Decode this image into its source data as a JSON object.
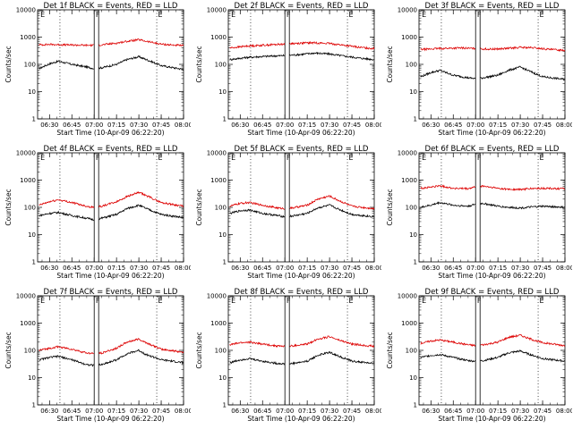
{
  "colors": {
    "events": "#000000",
    "lld": "#dd0000",
    "axes": "#000000"
  },
  "chart_data": [
    {
      "type": "line",
      "title": "Det 1f BLACK = Events, RED = LLD",
      "xlabel": "Start Time (10-Apr-09 06:22:20)",
      "ylabel": "Counts/sec",
      "x_tick_labels": [
        "06:30",
        "06:45",
        "07:00",
        "07:15",
        "07:30",
        "07:45",
        "08:00"
      ],
      "y_tick_labels": [
        "1",
        "10",
        "100",
        "1000",
        "10000"
      ],
      "y_scale": "log",
      "ylim": [
        1,
        10000
      ],
      "xlim": [
        "06:22",
        "08:00"
      ],
      "markers": [
        {
          "label": "E",
          "time": "06:23"
        },
        {
          "label": "F",
          "time": "07:00"
        },
        {
          "label": "E",
          "time": "07:42"
        }
      ],
      "dotted_lines": [
        "06:37",
        "07:42"
      ],
      "gap": [
        "07:00",
        "07:03"
      ],
      "series": [
        {
          "name": "Events",
          "color": "#000000",
          "x": [
            "06:23",
            "06:30",
            "06:36",
            "06:45",
            "06:55",
            "07:00",
            "07:05",
            "07:15",
            "07:22",
            "07:30",
            "07:35",
            "07:45",
            "08:00"
          ],
          "y": [
            70,
            105,
            130,
            100,
            80,
            70,
            75,
            100,
            150,
            190,
            150,
            90,
            65
          ]
        },
        {
          "name": "LLD",
          "color": "#dd0000",
          "x": [
            "06:23",
            "06:30",
            "06:40",
            "06:55",
            "07:00",
            "07:05",
            "07:15",
            "07:22",
            "07:30",
            "07:35",
            "07:45",
            "08:00"
          ],
          "y": [
            520,
            540,
            520,
            500,
            500,
            520,
            600,
            700,
            800,
            700,
            550,
            480
          ]
        }
      ]
    },
    {
      "type": "line",
      "title": "Det 2f BLACK = Events, RED = LLD",
      "xlabel": "Start Time (10-Apr-09 06:22:20)",
      "ylabel": "Counts/sec",
      "x_tick_labels": [
        "06:30",
        "06:45",
        "07:00",
        "07:15",
        "07:30",
        "07:45",
        "08:00"
      ],
      "y_tick_labels": [
        "1",
        "10",
        "100",
        "1000",
        "10000"
      ],
      "y_scale": "log",
      "ylim": [
        1,
        10000
      ],
      "xlim": [
        "06:22",
        "08:00"
      ],
      "markers": [
        {
          "label": "E",
          "time": "06:23"
        },
        {
          "label": "F",
          "time": "07:00"
        },
        {
          "label": "E",
          "time": "07:42"
        }
      ],
      "dotted_lines": [
        "06:37",
        "07:42"
      ],
      "gap": [
        "07:00",
        "07:03"
      ],
      "series": [
        {
          "name": "Events",
          "color": "#000000",
          "x": [
            "06:23",
            "06:35",
            "06:50",
            "07:00",
            "07:10",
            "07:20",
            "07:30",
            "07:40",
            "07:50",
            "08:00"
          ],
          "y": [
            150,
            180,
            200,
            210,
            230,
            260,
            240,
            200,
            170,
            150
          ]
        },
        {
          "name": "LLD",
          "color": "#dd0000",
          "x": [
            "06:23",
            "06:35",
            "06:50",
            "07:00",
            "07:10",
            "07:20",
            "07:30",
            "07:40",
            "07:50",
            "08:00"
          ],
          "y": [
            400,
            470,
            520,
            560,
            600,
            620,
            580,
            500,
            420,
            380
          ]
        }
      ]
    },
    {
      "type": "line",
      "title": "Det 3f BLACK = Events, RED = LLD",
      "xlabel": "Start Time (10-Apr-09 06:22:20)",
      "ylabel": "Counts/sec",
      "x_tick_labels": [
        "06:30",
        "06:45",
        "07:00",
        "07:15",
        "07:30",
        "07:45",
        "08:00"
      ],
      "y_tick_labels": [
        "1",
        "10",
        "100",
        "1000",
        "10000"
      ],
      "y_scale": "log",
      "ylim": [
        1,
        10000
      ],
      "xlim": [
        "06:22",
        "08:00"
      ],
      "markers": [
        {
          "label": "E",
          "time": "06:23"
        },
        {
          "label": "F",
          "time": "07:00"
        },
        {
          "label": "E",
          "time": "07:42"
        }
      ],
      "dotted_lines": [
        "06:37",
        "07:42"
      ],
      "gap": [
        "07:00",
        "07:03"
      ],
      "series": [
        {
          "name": "Events",
          "color": "#000000",
          "x": [
            "06:23",
            "06:30",
            "06:36",
            "06:45",
            "06:55",
            "07:00",
            "07:05",
            "07:15",
            "07:22",
            "07:30",
            "07:35",
            "07:45",
            "08:00"
          ],
          "y": [
            35,
            50,
            60,
            40,
            32,
            30,
            32,
            40,
            60,
            80,
            60,
            35,
            28
          ]
        },
        {
          "name": "LLD",
          "color": "#dd0000",
          "x": [
            "06:23",
            "06:35",
            "06:50",
            "07:00",
            "07:10",
            "07:20",
            "07:30",
            "07:40",
            "07:50",
            "08:00"
          ],
          "y": [
            350,
            380,
            400,
            380,
            360,
            380,
            420,
            400,
            350,
            330
          ]
        }
      ]
    },
    {
      "type": "line",
      "title": "Det 4f BLACK = Events, RED = LLD",
      "xlabel": "Start Time (10-Apr-09 06:22:20)",
      "ylabel": "Counts/sec",
      "x_tick_labels": [
        "06:30",
        "06:45",
        "07:00",
        "07:15",
        "07:30",
        "07:45",
        "08:00"
      ],
      "y_tick_labels": [
        "1",
        "10",
        "100",
        "1000",
        "10000"
      ],
      "y_scale": "log",
      "ylim": [
        1,
        10000
      ],
      "xlim": [
        "06:22",
        "08:00"
      ],
      "markers": [
        {
          "label": "E",
          "time": "06:23"
        },
        {
          "label": "F",
          "time": "07:00"
        },
        {
          "label": "E",
          "time": "07:42"
        }
      ],
      "dotted_lines": [
        "06:37",
        "07:42"
      ],
      "gap": [
        "07:00",
        "07:03"
      ],
      "series": [
        {
          "name": "Events",
          "color": "#000000",
          "x": [
            "06:23",
            "06:30",
            "06:36",
            "06:45",
            "06:55",
            "07:00",
            "07:05",
            "07:15",
            "07:22",
            "07:30",
            "07:35",
            "07:45",
            "08:00"
          ],
          "y": [
            50,
            60,
            65,
            50,
            40,
            35,
            40,
            55,
            90,
            120,
            90,
            55,
            42
          ]
        },
        {
          "name": "LLD",
          "color": "#dd0000",
          "x": [
            "06:23",
            "06:30",
            "06:36",
            "06:45",
            "06:55",
            "07:00",
            "07:05",
            "07:15",
            "07:22",
            "07:30",
            "07:35",
            "07:45",
            "08:00"
          ],
          "y": [
            120,
            160,
            190,
            150,
            110,
            100,
            110,
            160,
            250,
            350,
            270,
            150,
            110
          ]
        }
      ]
    },
    {
      "type": "line",
      "title": "Det 5f BLACK = Events, RED = LLD",
      "xlabel": "Start Time (10-Apr-09 06:22:20)",
      "ylabel": "Counts/sec",
      "x_tick_labels": [
        "06:30",
        "06:45",
        "07:00",
        "07:15",
        "07:30",
        "07:45",
        "08:00"
      ],
      "y_tick_labels": [
        "1",
        "10",
        "100",
        "1000",
        "10000"
      ],
      "y_scale": "log",
      "ylim": [
        1,
        10000
      ],
      "xlim": [
        "06:22",
        "08:00"
      ],
      "markers": [
        {
          "label": "E",
          "time": "06:23"
        },
        {
          "label": "F",
          "time": "07:00"
        },
        {
          "label": "E",
          "time": "07:42"
        }
      ],
      "dotted_lines": [
        "06:37",
        "07:42"
      ],
      "gap": [
        "07:00",
        "07:03"
      ],
      "series": [
        {
          "name": "Events",
          "color": "#000000",
          "x": [
            "06:23",
            "06:30",
            "06:36",
            "06:45",
            "06:55",
            "07:00",
            "07:05",
            "07:15",
            "07:22",
            "07:30",
            "07:35",
            "07:45",
            "08:00"
          ],
          "y": [
            60,
            75,
            80,
            60,
            50,
            45,
            48,
            60,
            95,
            120,
            90,
            55,
            45
          ]
        },
        {
          "name": "LLD",
          "color": "#dd0000",
          "x": [
            "06:23",
            "06:30",
            "06:36",
            "06:45",
            "06:55",
            "07:00",
            "07:05",
            "07:15",
            "07:22",
            "07:30",
            "07:35",
            "07:45",
            "08:00"
          ],
          "y": [
            110,
            140,
            150,
            120,
            95,
            90,
            95,
            120,
            200,
            260,
            190,
            110,
            90
          ]
        }
      ]
    },
    {
      "type": "line",
      "title": "Det 6f BLACK = Events, RED = LLD",
      "xlabel": "Start Time (10-Apr-09 06:22:20)",
      "ylabel": "Counts/sec",
      "x_tick_labels": [
        "06:30",
        "06:45",
        "07:00",
        "07:15",
        "07:30",
        "07:45",
        "08:00"
      ],
      "y_tick_labels": [
        "1",
        "10",
        "100",
        "1000",
        "10000"
      ],
      "y_scale": "log",
      "ylim": [
        1,
        10000
      ],
      "xlim": [
        "06:22",
        "08:00"
      ],
      "markers": [
        {
          "label": "E",
          "time": "06:23"
        },
        {
          "label": "F",
          "time": "07:00"
        },
        {
          "label": "E",
          "time": "07:42"
        }
      ],
      "dotted_lines": [
        "06:37",
        "07:42"
      ],
      "gap": [
        "07:00",
        "07:03"
      ],
      "series": [
        {
          "name": "Events",
          "color": "#000000",
          "x": [
            "06:23",
            "06:30",
            "06:36",
            "06:45",
            "06:55",
            "07:00",
            "07:05",
            "07:15",
            "07:22",
            "07:30",
            "07:35",
            "07:45",
            "08:00"
          ],
          "y": [
            100,
            120,
            150,
            120,
            110,
            130,
            140,
            110,
            100,
            95,
            100,
            110,
            100
          ]
        },
        {
          "name": "LLD",
          "color": "#dd0000",
          "x": [
            "06:23",
            "06:30",
            "06:36",
            "06:45",
            "06:55",
            "07:00",
            "07:05",
            "07:15",
            "07:22",
            "07:30",
            "07:35",
            "07:45",
            "08:00"
          ],
          "y": [
            500,
            550,
            620,
            500,
            480,
            560,
            600,
            500,
            460,
            450,
            480,
            500,
            480
          ]
        }
      ]
    },
    {
      "type": "line",
      "title": "Det 7f BLACK = Events, RED = LLD",
      "xlabel": "Start Time (10-Apr-09 06:22:20)",
      "ylabel": "Counts/sec",
      "x_tick_labels": [
        "06:30",
        "06:45",
        "07:00",
        "07:15",
        "07:30",
        "07:45",
        "08:00"
      ],
      "y_tick_labels": [
        "1",
        "10",
        "100",
        "1000",
        "10000"
      ],
      "y_scale": "log",
      "ylim": [
        1,
        10000
      ],
      "xlim": [
        "06:22",
        "08:00"
      ],
      "markers": [
        {
          "label": "E",
          "time": "06:23"
        },
        {
          "label": "F",
          "time": "07:00"
        },
        {
          "label": "E",
          "time": "07:42"
        }
      ],
      "dotted_lines": [
        "06:37",
        "07:42"
      ],
      "gap": [
        "07:00",
        "07:03"
      ],
      "series": [
        {
          "name": "Events",
          "color": "#000000",
          "x": [
            "06:23",
            "06:30",
            "06:36",
            "06:45",
            "06:55",
            "07:00",
            "07:05",
            "07:15",
            "07:22",
            "07:30",
            "07:35",
            "07:45",
            "08:00"
          ],
          "y": [
            45,
            55,
            60,
            45,
            30,
            28,
            30,
            45,
            75,
            100,
            70,
            45,
            35
          ]
        },
        {
          "name": "LLD",
          "color": "#dd0000",
          "x": [
            "06:23",
            "06:30",
            "06:36",
            "06:45",
            "06:55",
            "07:00",
            "07:05",
            "07:15",
            "07:22",
            "07:30",
            "07:35",
            "07:45",
            "08:00"
          ],
          "y": [
            100,
            120,
            135,
            110,
            80,
            75,
            80,
            120,
            200,
            260,
            190,
            110,
            85
          ]
        }
      ]
    },
    {
      "type": "line",
      "title": "Det 8f BLACK = Events, RED = LLD",
      "xlabel": "Start Time (10-Apr-09 06:22:20)",
      "ylabel": "Counts/sec",
      "x_tick_labels": [
        "06:30",
        "06:45",
        "07:00",
        "07:15",
        "07:30",
        "07:45",
        "08:00"
      ],
      "y_tick_labels": [
        "1",
        "10",
        "100",
        "1000",
        "10000"
      ],
      "y_scale": "log",
      "ylim": [
        1,
        10000
      ],
      "xlim": [
        "06:22",
        "08:00"
      ],
      "markers": [
        {
          "label": "E",
          "time": "06:23"
        },
        {
          "label": "F",
          "time": "07:00"
        },
        {
          "label": "E",
          "time": "07:42"
        }
      ],
      "dotted_lines": [
        "06:37",
        "07:42"
      ],
      "gap": [
        "07:00",
        "07:03"
      ],
      "series": [
        {
          "name": "Events",
          "color": "#000000",
          "x": [
            "06:23",
            "06:30",
            "06:36",
            "06:45",
            "06:55",
            "07:00",
            "07:05",
            "07:15",
            "07:22",
            "07:30",
            "07:35",
            "07:45",
            "08:00"
          ],
          "y": [
            35,
            45,
            50,
            40,
            33,
            32,
            33,
            40,
            65,
            85,
            65,
            40,
            33
          ]
        },
        {
          "name": "LLD",
          "color": "#dd0000",
          "x": [
            "06:23",
            "06:30",
            "06:36",
            "06:45",
            "06:55",
            "07:00",
            "07:05",
            "07:15",
            "07:22",
            "07:30",
            "07:35",
            "07:45",
            "08:00"
          ],
          "y": [
            160,
            190,
            200,
            170,
            145,
            140,
            145,
            170,
            260,
            320,
            250,
            170,
            140
          ]
        }
      ]
    },
    {
      "type": "line",
      "title": "Det 9f BLACK = Events, RED = LLD",
      "xlabel": "Start Time (10-Apr-09 06:22:20)",
      "ylabel": "Counts/sec",
      "x_tick_labels": [
        "06:30",
        "06:45",
        "07:00",
        "07:15",
        "07:30",
        "07:45",
        "08:00"
      ],
      "y_tick_labels": [
        "1",
        "10",
        "100",
        "1000",
        "10000"
      ],
      "y_scale": "log",
      "ylim": [
        1,
        10000
      ],
      "xlim": [
        "06:22",
        "08:00"
      ],
      "markers": [
        {
          "label": "E",
          "time": "06:23"
        },
        {
          "label": "F",
          "time": "07:00"
        },
        {
          "label": "E",
          "time": "07:42"
        }
      ],
      "dotted_lines": [
        "06:37",
        "07:42"
      ],
      "gap": [
        "07:00",
        "07:03"
      ],
      "series": [
        {
          "name": "Events",
          "color": "#000000",
          "x": [
            "06:23",
            "06:30",
            "06:36",
            "06:45",
            "06:55",
            "07:00",
            "07:05",
            "07:15",
            "07:22",
            "07:30",
            "07:35",
            "07:45",
            "08:00"
          ],
          "y": [
            55,
            65,
            70,
            55,
            42,
            40,
            42,
            55,
            80,
            95,
            75,
            50,
            40
          ]
        },
        {
          "name": "LLD",
          "color": "#dd0000",
          "x": [
            "06:23",
            "06:30",
            "06:36",
            "06:45",
            "06:55",
            "07:00",
            "07:05",
            "07:15",
            "07:22",
            "07:30",
            "07:35",
            "07:45",
            "08:00"
          ],
          "y": [
            180,
            220,
            240,
            200,
            160,
            150,
            160,
            200,
            300,
            360,
            280,
            190,
            150
          ]
        }
      ]
    }
  ]
}
